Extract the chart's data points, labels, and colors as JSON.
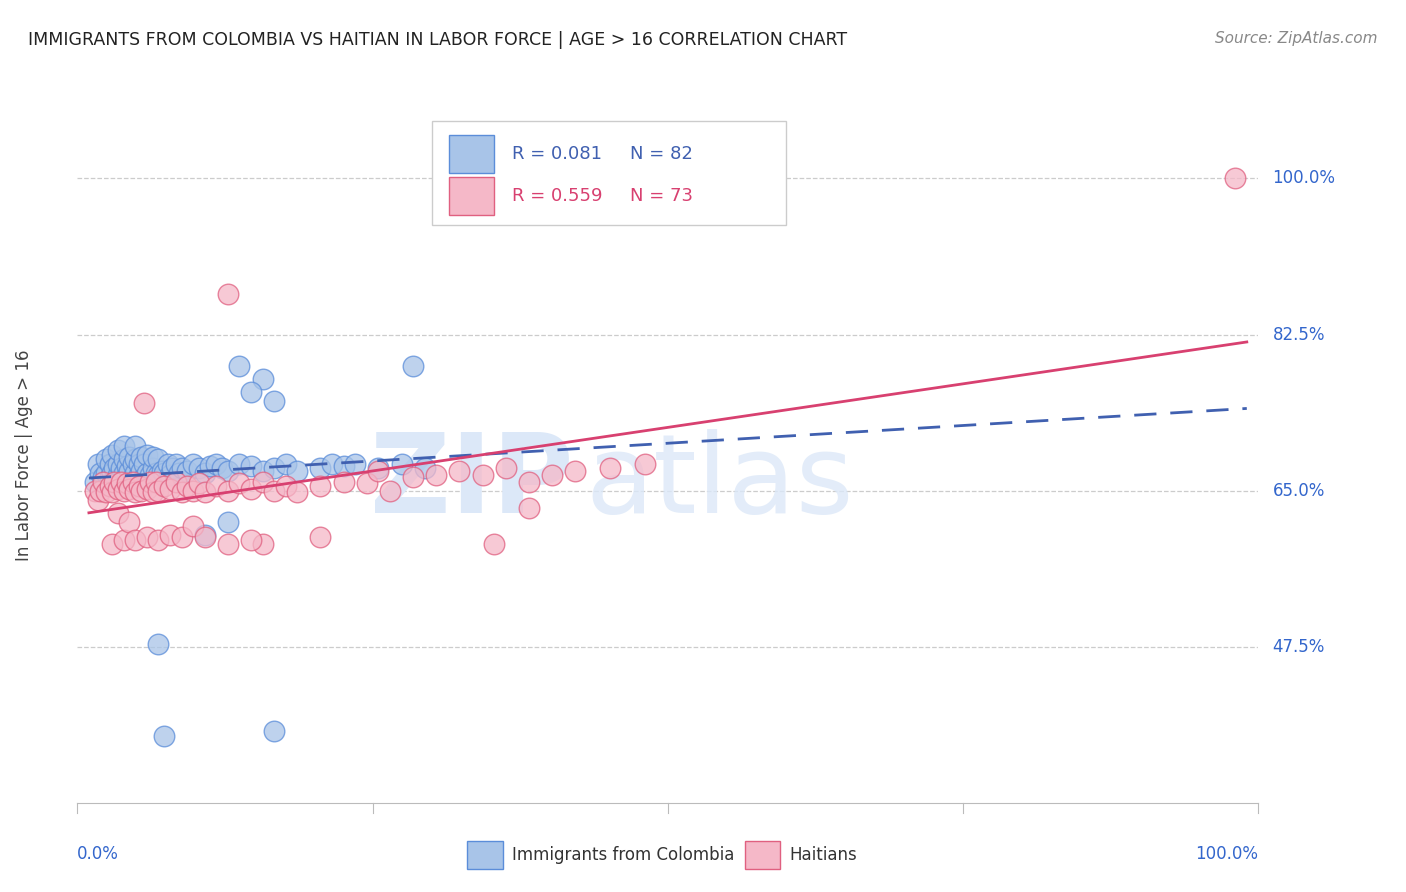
{
  "title": "IMMIGRANTS FROM COLOMBIA VS HAITIAN IN LABOR FORCE | AGE > 16 CORRELATION CHART",
  "source": "Source: ZipAtlas.com",
  "ylabel": "In Labor Force | Age > 16",
  "ytick_labels": [
    "100.0%",
    "82.5%",
    "65.0%",
    "47.5%"
  ],
  "ytick_values": [
    1.0,
    0.825,
    0.65,
    0.475
  ],
  "colombia_color": "#a8c4e8",
  "colombia_edge_color": "#5b8dd9",
  "haiti_color": "#f5b8c8",
  "haiti_edge_color": "#e06080",
  "trend_colombia_color": "#4060b0",
  "trend_haiti_color": "#d84070",
  "colombia_x": [
    0.005,
    0.008,
    0.01,
    0.012,
    0.015,
    0.015,
    0.018,
    0.018,
    0.02,
    0.02,
    0.022,
    0.022,
    0.025,
    0.025,
    0.025,
    0.028,
    0.028,
    0.03,
    0.03,
    0.03,
    0.033,
    0.033,
    0.035,
    0.035,
    0.038,
    0.038,
    0.04,
    0.04,
    0.04,
    0.043,
    0.043,
    0.045,
    0.045,
    0.048,
    0.048,
    0.05,
    0.05,
    0.053,
    0.055,
    0.055,
    0.058,
    0.06,
    0.06,
    0.063,
    0.065,
    0.068,
    0.07,
    0.072,
    0.075,
    0.078,
    0.08,
    0.085,
    0.09,
    0.095,
    0.1,
    0.105,
    0.11,
    0.115,
    0.12,
    0.13,
    0.14,
    0.15,
    0.16,
    0.17,
    0.18,
    0.2,
    0.21,
    0.22,
    0.23,
    0.25,
    0.27,
    0.29,
    0.13,
    0.15,
    0.1,
    0.12,
    0.28,
    0.14,
    0.16,
    0.06,
    0.065,
    0.16
  ],
  "colombia_y": [
    0.66,
    0.68,
    0.67,
    0.665,
    0.67,
    0.685,
    0.665,
    0.68,
    0.67,
    0.69,
    0.675,
    0.66,
    0.668,
    0.68,
    0.695,
    0.665,
    0.675,
    0.67,
    0.685,
    0.7,
    0.668,
    0.678,
    0.672,
    0.688,
    0.665,
    0.68,
    0.67,
    0.685,
    0.7,
    0.668,
    0.68,
    0.672,
    0.688,
    0.665,
    0.68,
    0.67,
    0.69,
    0.668,
    0.675,
    0.688,
    0.67,
    0.668,
    0.685,
    0.672,
    0.67,
    0.68,
    0.668,
    0.675,
    0.68,
    0.67,
    0.675,
    0.672,
    0.68,
    0.675,
    0.67,
    0.678,
    0.68,
    0.675,
    0.672,
    0.68,
    0.678,
    0.672,
    0.675,
    0.68,
    0.672,
    0.675,
    0.68,
    0.678,
    0.68,
    0.675,
    0.68,
    0.675,
    0.79,
    0.775,
    0.6,
    0.615,
    0.79,
    0.76,
    0.75,
    0.478,
    0.375,
    0.38
  ],
  "haiti_x": [
    0.005,
    0.008,
    0.01,
    0.012,
    0.015,
    0.018,
    0.02,
    0.022,
    0.025,
    0.028,
    0.03,
    0.033,
    0.035,
    0.038,
    0.04,
    0.043,
    0.045,
    0.048,
    0.05,
    0.053,
    0.055,
    0.058,
    0.06,
    0.065,
    0.07,
    0.075,
    0.08,
    0.085,
    0.09,
    0.095,
    0.1,
    0.11,
    0.12,
    0.13,
    0.14,
    0.15,
    0.16,
    0.17,
    0.18,
    0.2,
    0.22,
    0.24,
    0.26,
    0.28,
    0.3,
    0.32,
    0.34,
    0.36,
    0.38,
    0.4,
    0.42,
    0.45,
    0.48,
    0.02,
    0.025,
    0.03,
    0.035,
    0.04,
    0.05,
    0.06,
    0.07,
    0.08,
    0.09,
    0.1,
    0.15,
    0.2,
    0.25,
    0.14,
    0.12,
    0.35,
    0.38,
    0.12,
    0.99
  ],
  "haiti_y": [
    0.65,
    0.64,
    0.65,
    0.66,
    0.648,
    0.655,
    0.648,
    0.66,
    0.652,
    0.66,
    0.65,
    0.658,
    0.652,
    0.66,
    0.648,
    0.655,
    0.65,
    0.748,
    0.652,
    0.66,
    0.648,
    0.66,
    0.65,
    0.655,
    0.652,
    0.66,
    0.648,
    0.655,
    0.65,
    0.658,
    0.648,
    0.655,
    0.65,
    0.658,
    0.652,
    0.66,
    0.65,
    0.655,
    0.648,
    0.655,
    0.66,
    0.658,
    0.65,
    0.665,
    0.668,
    0.672,
    0.668,
    0.675,
    0.66,
    0.668,
    0.672,
    0.675,
    0.68,
    0.59,
    0.625,
    0.595,
    0.615,
    0.595,
    0.598,
    0.595,
    0.6,
    0.598,
    0.61,
    0.598,
    0.59,
    0.598,
    0.672,
    0.595,
    0.59,
    0.59,
    0.63,
    0.87,
    1.0
  ]
}
